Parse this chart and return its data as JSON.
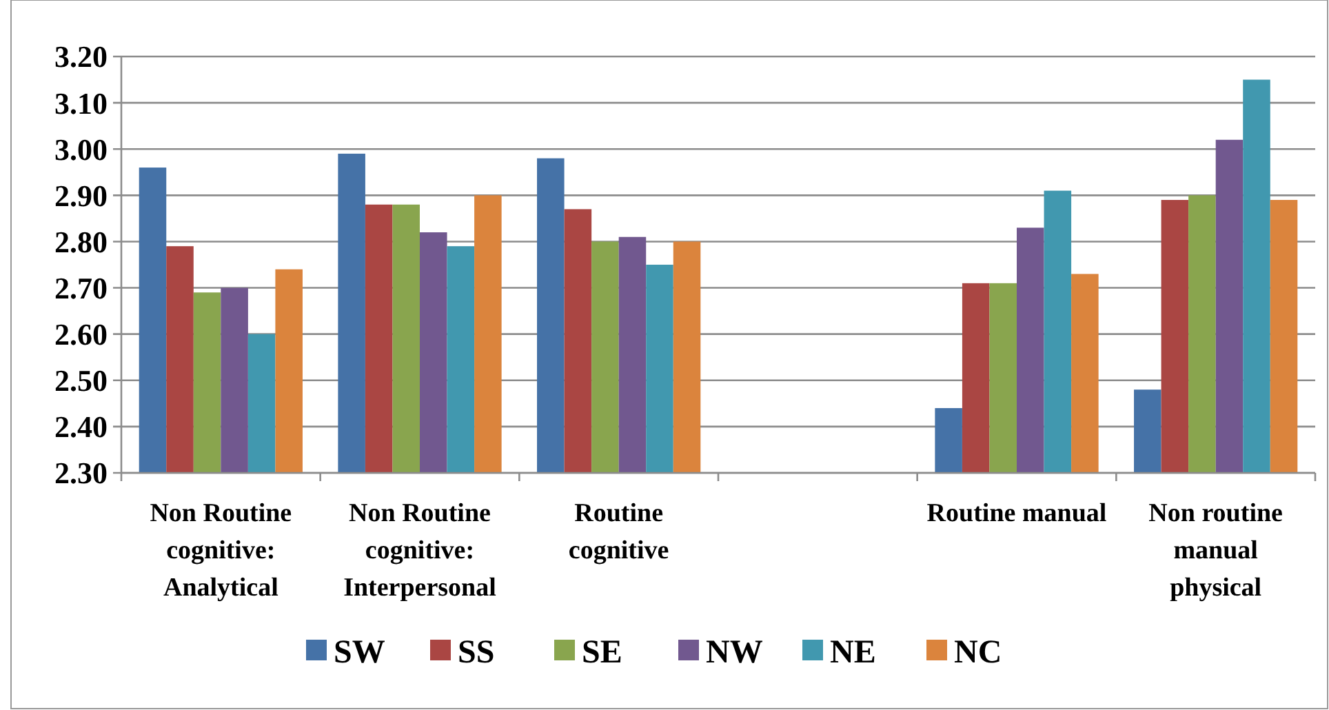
{
  "chart_data": {
    "type": "bar",
    "categories": [
      "Non Routine cognitive: Analytical",
      "Non Routine cognitive: Interpersonal",
      "Routine cognitive",
      null,
      "Routine manual",
      "Non routine manual physical"
    ],
    "series": [
      {
        "name": "SW",
        "color": "#4572a7",
        "values": [
          2.96,
          2.99,
          2.98,
          null,
          2.44,
          2.48
        ]
      },
      {
        "name": "SS",
        "color": "#aa4643",
        "values": [
          2.79,
          2.88,
          2.87,
          null,
          2.71,
          2.89
        ]
      },
      {
        "name": "SE",
        "color": "#89a54e",
        "values": [
          2.69,
          2.88,
          2.8,
          null,
          2.71,
          2.9
        ]
      },
      {
        "name": "NW",
        "color": "#71588f",
        "values": [
          2.7,
          2.82,
          2.81,
          null,
          2.83,
          3.02
        ]
      },
      {
        "name": "NE",
        "color": "#4198af",
        "values": [
          2.6,
          2.79,
          2.75,
          null,
          2.91,
          3.15
        ]
      },
      {
        "name": "NC",
        "color": "#db843d",
        "values": [
          2.74,
          2.9,
          2.8,
          null,
          2.73,
          2.89
        ]
      }
    ],
    "ylim": [
      2.3,
      3.2
    ],
    "yticks": [
      {
        "value": 2.3,
        "label": "2.30"
      },
      {
        "value": 2.4,
        "label": "2.40"
      },
      {
        "value": 2.5,
        "label": "2.50"
      },
      {
        "value": 2.6,
        "label": "2.60"
      },
      {
        "value": 2.7,
        "label": "2.70"
      },
      {
        "value": 2.8,
        "label": "2.80"
      },
      {
        "value": 2.9,
        "label": "2.90"
      },
      {
        "value": 3.0,
        "label": "3.00"
      },
      {
        "value": 3.1,
        "label": "3.10"
      },
      {
        "value": 3.2,
        "label": "3.20"
      }
    ],
    "grid": "y",
    "legend": "bottom"
  }
}
